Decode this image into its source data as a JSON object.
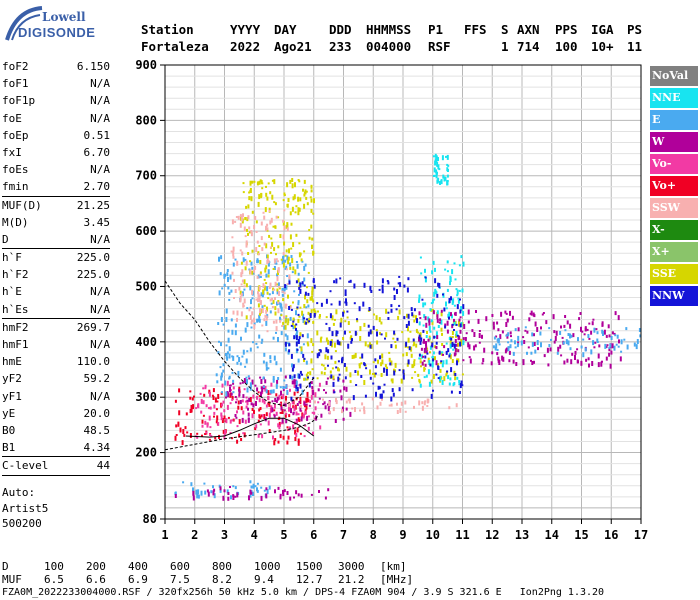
{
  "logo": {
    "brand": "Lowell",
    "product": "DIGISONDE"
  },
  "header": {
    "labels": [
      "Station",
      "YYYY",
      "DAY",
      "DDD",
      "HHMMSS",
      "P1",
      "FFS",
      "S",
      "AXN",
      "PPS",
      "IGA",
      "PS"
    ],
    "values": [
      "Fortaleza",
      "2022",
      "Ago21",
      "233",
      "004000",
      "RSF",
      "",
      "1",
      "714",
      "100",
      "10+",
      "11"
    ]
  },
  "params": [
    {
      "name": "foF2",
      "value": "6.150"
    },
    {
      "name": "foF1",
      "value": "N/A"
    },
    {
      "name": "foF1p",
      "value": "N/A"
    },
    {
      "name": "foE",
      "value": "N/A"
    },
    {
      "name": "foEp",
      "value": "0.51"
    },
    {
      "name": "fxI",
      "value": "6.70"
    },
    {
      "name": "foEs",
      "value": "N/A"
    },
    {
      "name": "fmin",
      "value": "2.70"
    },
    {
      "sep": true
    },
    {
      "name": "MUF(D)",
      "value": "21.25"
    },
    {
      "name": "M(D)",
      "value": "3.45"
    },
    {
      "name": "D",
      "value": "N/A"
    },
    {
      "sep": true
    },
    {
      "name": "h`F",
      "value": "225.0"
    },
    {
      "name": "h`F2",
      "value": "225.0"
    },
    {
      "name": "h`E",
      "value": "N/A"
    },
    {
      "name": "h`Es",
      "value": "N/A"
    },
    {
      "sep": true
    },
    {
      "name": "hmF2",
      "value": "269.7"
    },
    {
      "name": "hmF1",
      "value": "N/A"
    },
    {
      "name": "hmE",
      "value": "110.0"
    },
    {
      "name": "yF2",
      "value": "59.2"
    },
    {
      "name": "yF1",
      "value": "N/A"
    },
    {
      "name": "yE",
      "value": "20.0"
    },
    {
      "name": "B0",
      "value": "48.5"
    },
    {
      "name": "B1",
      "value": "4.34"
    },
    {
      "sep": true
    },
    {
      "name": "C-level",
      "value": "44"
    },
    {
      "sep": true
    }
  ],
  "auto": {
    "line1": "Auto:",
    "line2": "Artist5",
    "line3": "500200"
  },
  "legend": [
    {
      "label": "NoVal",
      "color": "#808080"
    },
    {
      "label": "NNE",
      "color": "#18e4f0"
    },
    {
      "label": "E",
      "color": "#4aaaf0"
    },
    {
      "label": "W",
      "color": "#b0009a"
    },
    {
      "label": "Vo-",
      "color": "#f23aa4"
    },
    {
      "label": "Vo+",
      "color": "#f00024"
    },
    {
      "label": "SSW",
      "color": "#f8b0b0"
    },
    {
      "label": "X-",
      "color": "#1e8a10"
    },
    {
      "label": "X+",
      "color": "#8ac46a"
    },
    {
      "label": "SSE",
      "color": "#d6d600"
    },
    {
      "label": "NNW",
      "color": "#1414d8"
    }
  ],
  "chart_data": {
    "type": "scatter",
    "title": "",
    "xlabel": "",
    "ylabel": "",
    "xlim": [
      1,
      17
    ],
    "ylim": [
      80,
      900
    ],
    "x_ticks": [
      1,
      2,
      3,
      4,
      5,
      6,
      7,
      8,
      9,
      10,
      11,
      12,
      13,
      14,
      15,
      16,
      17
    ],
    "y_ticks": [
      80,
      200,
      300,
      400,
      500,
      600,
      700,
      800,
      900
    ],
    "grid": true,
    "legend_position": "right",
    "echo_clusters": [
      {
        "class": "E",
        "freq": [
          1.3,
          4.5
        ],
        "height": [
          120,
          150
        ],
        "color": "#4aaaf0"
      },
      {
        "class": "W",
        "freq": [
          1.3,
          6.5
        ],
        "height": [
          120,
          140
        ],
        "color": "#b0009a"
      },
      {
        "class": "Vo+",
        "freq": [
          1.3,
          5.8
        ],
        "height": [
          220,
          320
        ],
        "color": "#f00024"
      },
      {
        "class": "Vo-",
        "freq": [
          2.0,
          6.3
        ],
        "height": [
          230,
          330
        ],
        "color": "#f23aa4"
      },
      {
        "class": "W",
        "freq": [
          3.0,
          7.2
        ],
        "height": [
          260,
          340
        ],
        "color": "#b0009a"
      },
      {
        "class": "SSW",
        "freq": [
          5.0,
          10.8
        ],
        "height": [
          275,
          300
        ],
        "color": "#f8b0b0"
      },
      {
        "class": "E",
        "freq": [
          2.7,
          5.8
        ],
        "height": [
          310,
          560
        ],
        "color": "#4aaaf0"
      },
      {
        "class": "SSE",
        "freq": [
          3.5,
          6.0
        ],
        "height": [
          430,
          700
        ],
        "color": "#d6d600"
      },
      {
        "class": "SSW",
        "freq": [
          3.2,
          5.2
        ],
        "height": [
          420,
          640
        ],
        "color": "#f8b0b0"
      },
      {
        "class": "SSE",
        "freq": [
          5.5,
          11.0
        ],
        "height": [
          330,
          460
        ],
        "color": "#d6d600"
      },
      {
        "class": "NNE",
        "freq": [
          9.5,
          11.0
        ],
        "height": [
          320,
          560
        ],
        "color": "#18e4f0"
      },
      {
        "class": "W",
        "freq": [
          9.5,
          16.3
        ],
        "height": [
          360,
          460
        ],
        "color": "#b0009a"
      },
      {
        "class": "E",
        "freq": [
          12.0,
          17.0
        ],
        "height": [
          380,
          430
        ],
        "color": "#4aaaf0"
      },
      {
        "class": "NNW",
        "freq": [
          5.0,
          11.0
        ],
        "height": [
          300,
          520
        ],
        "color": "#1414d8"
      },
      {
        "class": "NNE",
        "freq": [
          10.0,
          10.5
        ],
        "height": [
          690,
          740
        ],
        "color": "#18e4f0"
      }
    ],
    "profile_curve": {
      "freq": [
        1.0,
        2.0,
        3.0,
        4.0,
        4.5,
        5.0,
        5.5,
        5.9,
        6.0,
        6.1,
        6.15
      ],
      "height": [
        205,
        215,
        225,
        232,
        236,
        240,
        246,
        254,
        258,
        263,
        269.7
      ]
    },
    "virtual_height_curve": {
      "freq": [
        1.0,
        1.5,
        2.0,
        2.5,
        3.0,
        3.5,
        4.0,
        4.5,
        5.0,
        5.5,
        6.0
      ],
      "height": [
        510,
        470,
        440,
        400,
        365,
        335,
        310,
        290,
        285,
        300,
        335
      ]
    },
    "lower_trace": {
      "freq": [
        1.7,
        2.5,
        3.0,
        3.5,
        4.0,
        4.5,
        5.0,
        5.5,
        6.0
      ],
      "height": [
        230,
        228,
        230,
        240,
        252,
        262,
        262,
        250,
        230
      ]
    }
  },
  "footer": {
    "distance_label": "D",
    "distances": [
      "100",
      "200",
      "400",
      "600",
      "800",
      "1000",
      "1500",
      "3000",
      "[km]"
    ],
    "muf_label": "MUF",
    "mufs": [
      "6.5",
      "6.6",
      "6.9",
      "7.5",
      "8.2",
      "9.4",
      "12.7",
      "21.2",
      "[MHz]"
    ],
    "info": "FZA0M_2022233004000.RSF / 320fx256h 50 kHz 5.0 km / DPS-4 FZA0M 904 / 3.9 S 321.6 E   Ion2Png 1.3.20"
  }
}
